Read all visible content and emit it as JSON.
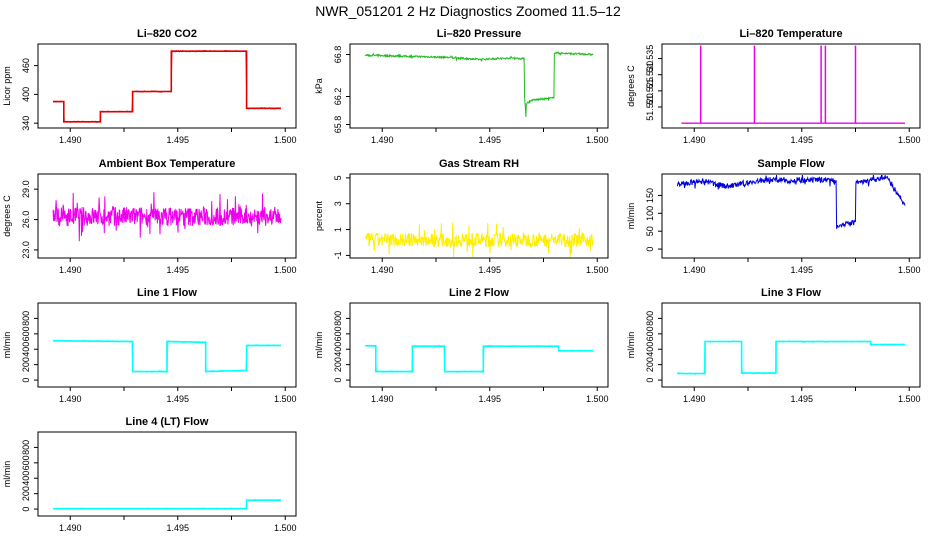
{
  "title": "NWR_051201  2 Hz Diagnostics Zoomed 11.5–12",
  "colors": {
    "red": "#e00000",
    "green": "#22bb22",
    "magenta": "#ee00ee",
    "yellow": "#ffee00",
    "blue": "#0000dd",
    "cyan": "#00ffff"
  },
  "chart_data": [
    {
      "type": "line",
      "title": "Li–820 CO2",
      "ylabel": "Licor ppm",
      "color": "red",
      "style": "step",
      "xlim": [
        1.4885,
        1.5005
      ],
      "xticks": [
        1.49,
        1.495,
        1.5
      ],
      "xticklabels": [
        "1.490",
        "1.495",
        "1.500"
      ],
      "ylim": [
        330,
        505
      ],
      "yticks": [
        340,
        400,
        460
      ],
      "yticklabels": [
        "340",
        "400",
        "460"
      ],
      "series": [
        {
          "name": "CO2",
          "x": [
            1.4892,
            1.4897,
            1.4897,
            1.4914,
            1.4914,
            1.4929,
            1.4929,
            1.4947,
            1.4947,
            1.4982,
            1.4982,
            1.4998
          ],
          "y": [
            385,
            385,
            343,
            343,
            364,
            364,
            406,
            406,
            490,
            490,
            371,
            371
          ]
        }
      ]
    },
    {
      "type": "line",
      "title": "Li–820 Pressure",
      "ylabel": "kPa",
      "color": "green",
      "style": "noisy",
      "xlim": [
        1.4885,
        1.5005
      ],
      "xticks": [
        1.49,
        1.495,
        1.5
      ],
      "xticklabels": [
        "1.490",
        "1.495",
        "1.500"
      ],
      "ylim": [
        65.75,
        66.95
      ],
      "yticks": [
        65.8,
        66.2,
        66.8
      ],
      "yticklabels": [
        "65.8",
        "66.2",
        "66.8"
      ],
      "series": [
        {
          "name": "pressure",
          "noise": 0.02,
          "x": [
            1.4892,
            1.493,
            1.4945,
            1.496,
            1.4966,
            1.4966,
            1.4967,
            1.4967,
            1.497,
            1.498,
            1.498,
            1.4982,
            1.4998
          ],
          "y": [
            66.79,
            66.76,
            66.73,
            66.75,
            66.74,
            66.3,
            65.82,
            66.1,
            66.15,
            66.18,
            66.83,
            66.82,
            66.8
          ]
        }
      ]
    },
    {
      "type": "line",
      "title": "Li–820 Temperature",
      "ylabel": "degrees C",
      "color": "magenta",
      "style": "spikes",
      "xlim": [
        1.4885,
        1.5005
      ],
      "xticks": [
        1.49,
        1.495,
        1.5
      ],
      "xticklabels": [
        "1.490",
        "1.495",
        "1.500"
      ],
      "ylim": [
        51.5135,
        51.5395
      ],
      "yticks": [
        51.52,
        51.525,
        51.53,
        51.535
      ],
      "yticklabels": [
        "51.520",
        "51.525",
        "51.530",
        "51.535"
      ],
      "baseline": 51.515,
      "series": [
        {
          "name": "temperature",
          "x": [
            1.4903,
            1.4928,
            1.4959,
            1.4961,
            1.4975
          ],
          "y": [
            51.539,
            51.539,
            51.539,
            51.539,
            51.539
          ]
        }
      ]
    },
    {
      "type": "line",
      "title": "Ambient Box Temperature",
      "ylabel": "degrees C",
      "color": "magenta",
      "style": "noisy",
      "xlim": [
        1.4885,
        1.5005
      ],
      "xticks": [
        1.49,
        1.495,
        1.5
      ],
      "xticklabels": [
        "1.490",
        "1.495",
        "1.500"
      ],
      "ylim": [
        22.2,
        30.5
      ],
      "yticks": [
        23.0,
        26.0,
        29.0
      ],
      "yticklabels": [
        "23.0",
        "26.0",
        "29.0"
      ],
      "series": [
        {
          "name": "box_temp",
          "noise": 1.6,
          "x": [
            1.4892,
            1.4998
          ],
          "y": [
            26.3,
            26.3
          ]
        }
      ]
    },
    {
      "type": "line",
      "title": "Gas Stream RH",
      "ylabel": "percent",
      "color": "yellow",
      "style": "noisy",
      "xlim": [
        1.4885,
        1.5005
      ],
      "xticks": [
        1.49,
        1.495,
        1.5
      ],
      "xticklabels": [
        "1.490",
        "1.495",
        "1.500"
      ],
      "ylim": [
        -1.2,
        5.3
      ],
      "yticks": [
        -1,
        1,
        3,
        5
      ],
      "yticklabels": [
        "-1",
        "1",
        "3",
        "5"
      ],
      "series": [
        {
          "name": "rh",
          "noise": 0.9,
          "x": [
            1.4892,
            1.4998
          ],
          "y": [
            0.2,
            0.2
          ]
        }
      ]
    },
    {
      "type": "line",
      "title": "Sample Flow",
      "ylabel": "ml/min",
      "color": "blue",
      "style": "noisy",
      "xlim": [
        1.4885,
        1.5005
      ],
      "xticks": [
        1.49,
        1.495,
        1.5
      ],
      "xticklabels": [
        "1.490",
        "1.495",
        "1.500"
      ],
      "ylim": [
        -25,
        210
      ],
      "yticks": [
        0,
        50,
        100,
        150
      ],
      "yticklabels": [
        "0",
        "50",
        "100",
        "150"
      ],
      "series": [
        {
          "name": "sample_flow",
          "noise": 12,
          "x": [
            1.4892,
            1.4905,
            1.4915,
            1.4935,
            1.4948,
            1.4962,
            1.4966,
            1.4966,
            1.4975,
            1.4975,
            1.499,
            1.4998
          ],
          "y": [
            180,
            190,
            175,
            195,
            190,
            195,
            188,
            65,
            75,
            185,
            200,
            120
          ]
        }
      ]
    },
    {
      "type": "line",
      "title": "Line 1 Flow",
      "ylabel": "ml/min",
      "color": "cyan",
      "style": "step",
      "xlim": [
        1.4885,
        1.5005
      ],
      "xticks": [
        1.49,
        1.495,
        1.5
      ],
      "xticklabels": [
        "1.490",
        "1.495",
        "1.500"
      ],
      "ylim": [
        -90,
        1000
      ],
      "yticks": [
        0,
        200,
        400,
        600,
        800
      ],
      "yticklabels": [
        "0",
        "200",
        "400",
        "600",
        "800"
      ],
      "series": [
        {
          "name": "line1",
          "x": [
            1.4892,
            1.4929,
            1.4929,
            1.4945,
            1.4945,
            1.4963,
            1.4963,
            1.4982,
            1.4982,
            1.4998
          ],
          "y": [
            510,
            500,
            110,
            110,
            500,
            490,
            110,
            125,
            450,
            450
          ]
        }
      ]
    },
    {
      "type": "line",
      "title": "Line 2 Flow",
      "ylabel": "ml/min",
      "color": "cyan",
      "style": "step",
      "xlim": [
        1.4885,
        1.5005
      ],
      "xticks": [
        1.49,
        1.495,
        1.5
      ],
      "xticklabels": [
        "1.490",
        "1.495",
        "1.500"
      ],
      "ylim": [
        -90,
        1000
      ],
      "yticks": [
        0,
        200,
        400,
        600,
        800
      ],
      "yticklabels": [
        "0",
        "200",
        "400",
        "600",
        "800"
      ],
      "series": [
        {
          "name": "line2",
          "x": [
            1.4892,
            1.4897,
            1.4897,
            1.4914,
            1.4914,
            1.4929,
            1.4929,
            1.4947,
            1.4947,
            1.4982,
            1.4982,
            1.4998
          ],
          "y": [
            445,
            445,
            110,
            110,
            440,
            440,
            110,
            110,
            440,
            440,
            380,
            380
          ]
        }
      ]
    },
    {
      "type": "line",
      "title": "Line 3 Flow",
      "ylabel": "ml/min",
      "color": "cyan",
      "style": "step",
      "xlim": [
        1.4885,
        1.5005
      ],
      "xticks": [
        1.49,
        1.495,
        1.5
      ],
      "xticklabels": [
        "1.490",
        "1.495",
        "1.500"
      ],
      "ylim": [
        -90,
        1000
      ],
      "yticks": [
        0,
        200,
        400,
        600,
        800
      ],
      "yticklabels": [
        "0",
        "200",
        "400",
        "600",
        "800"
      ],
      "series": [
        {
          "name": "line3",
          "x": [
            1.4892,
            1.4905,
            1.4905,
            1.4922,
            1.4922,
            1.4938,
            1.4938,
            1.4982,
            1.4982,
            1.4998
          ],
          "y": [
            85,
            85,
            500,
            500,
            90,
            90,
            500,
            500,
            460,
            460
          ]
        }
      ]
    },
    {
      "type": "line",
      "title": "Line 4 (LT) Flow",
      "ylabel": "ml/min",
      "color": "cyan",
      "style": "step",
      "xlim": [
        1.4885,
        1.5005
      ],
      "xticks": [
        1.49,
        1.495,
        1.5
      ],
      "xticklabels": [
        "1.490",
        "1.495",
        "1.500"
      ],
      "ylim": [
        -90,
        1000
      ],
      "yticks": [
        0,
        200,
        400,
        600,
        800
      ],
      "yticklabels": [
        "0",
        "200",
        "400",
        "600",
        "800"
      ],
      "series": [
        {
          "name": "line4",
          "x": [
            1.4892,
            1.4982,
            1.4982,
            1.4998
          ],
          "y": [
            5,
            5,
            115,
            115
          ]
        }
      ]
    }
  ]
}
